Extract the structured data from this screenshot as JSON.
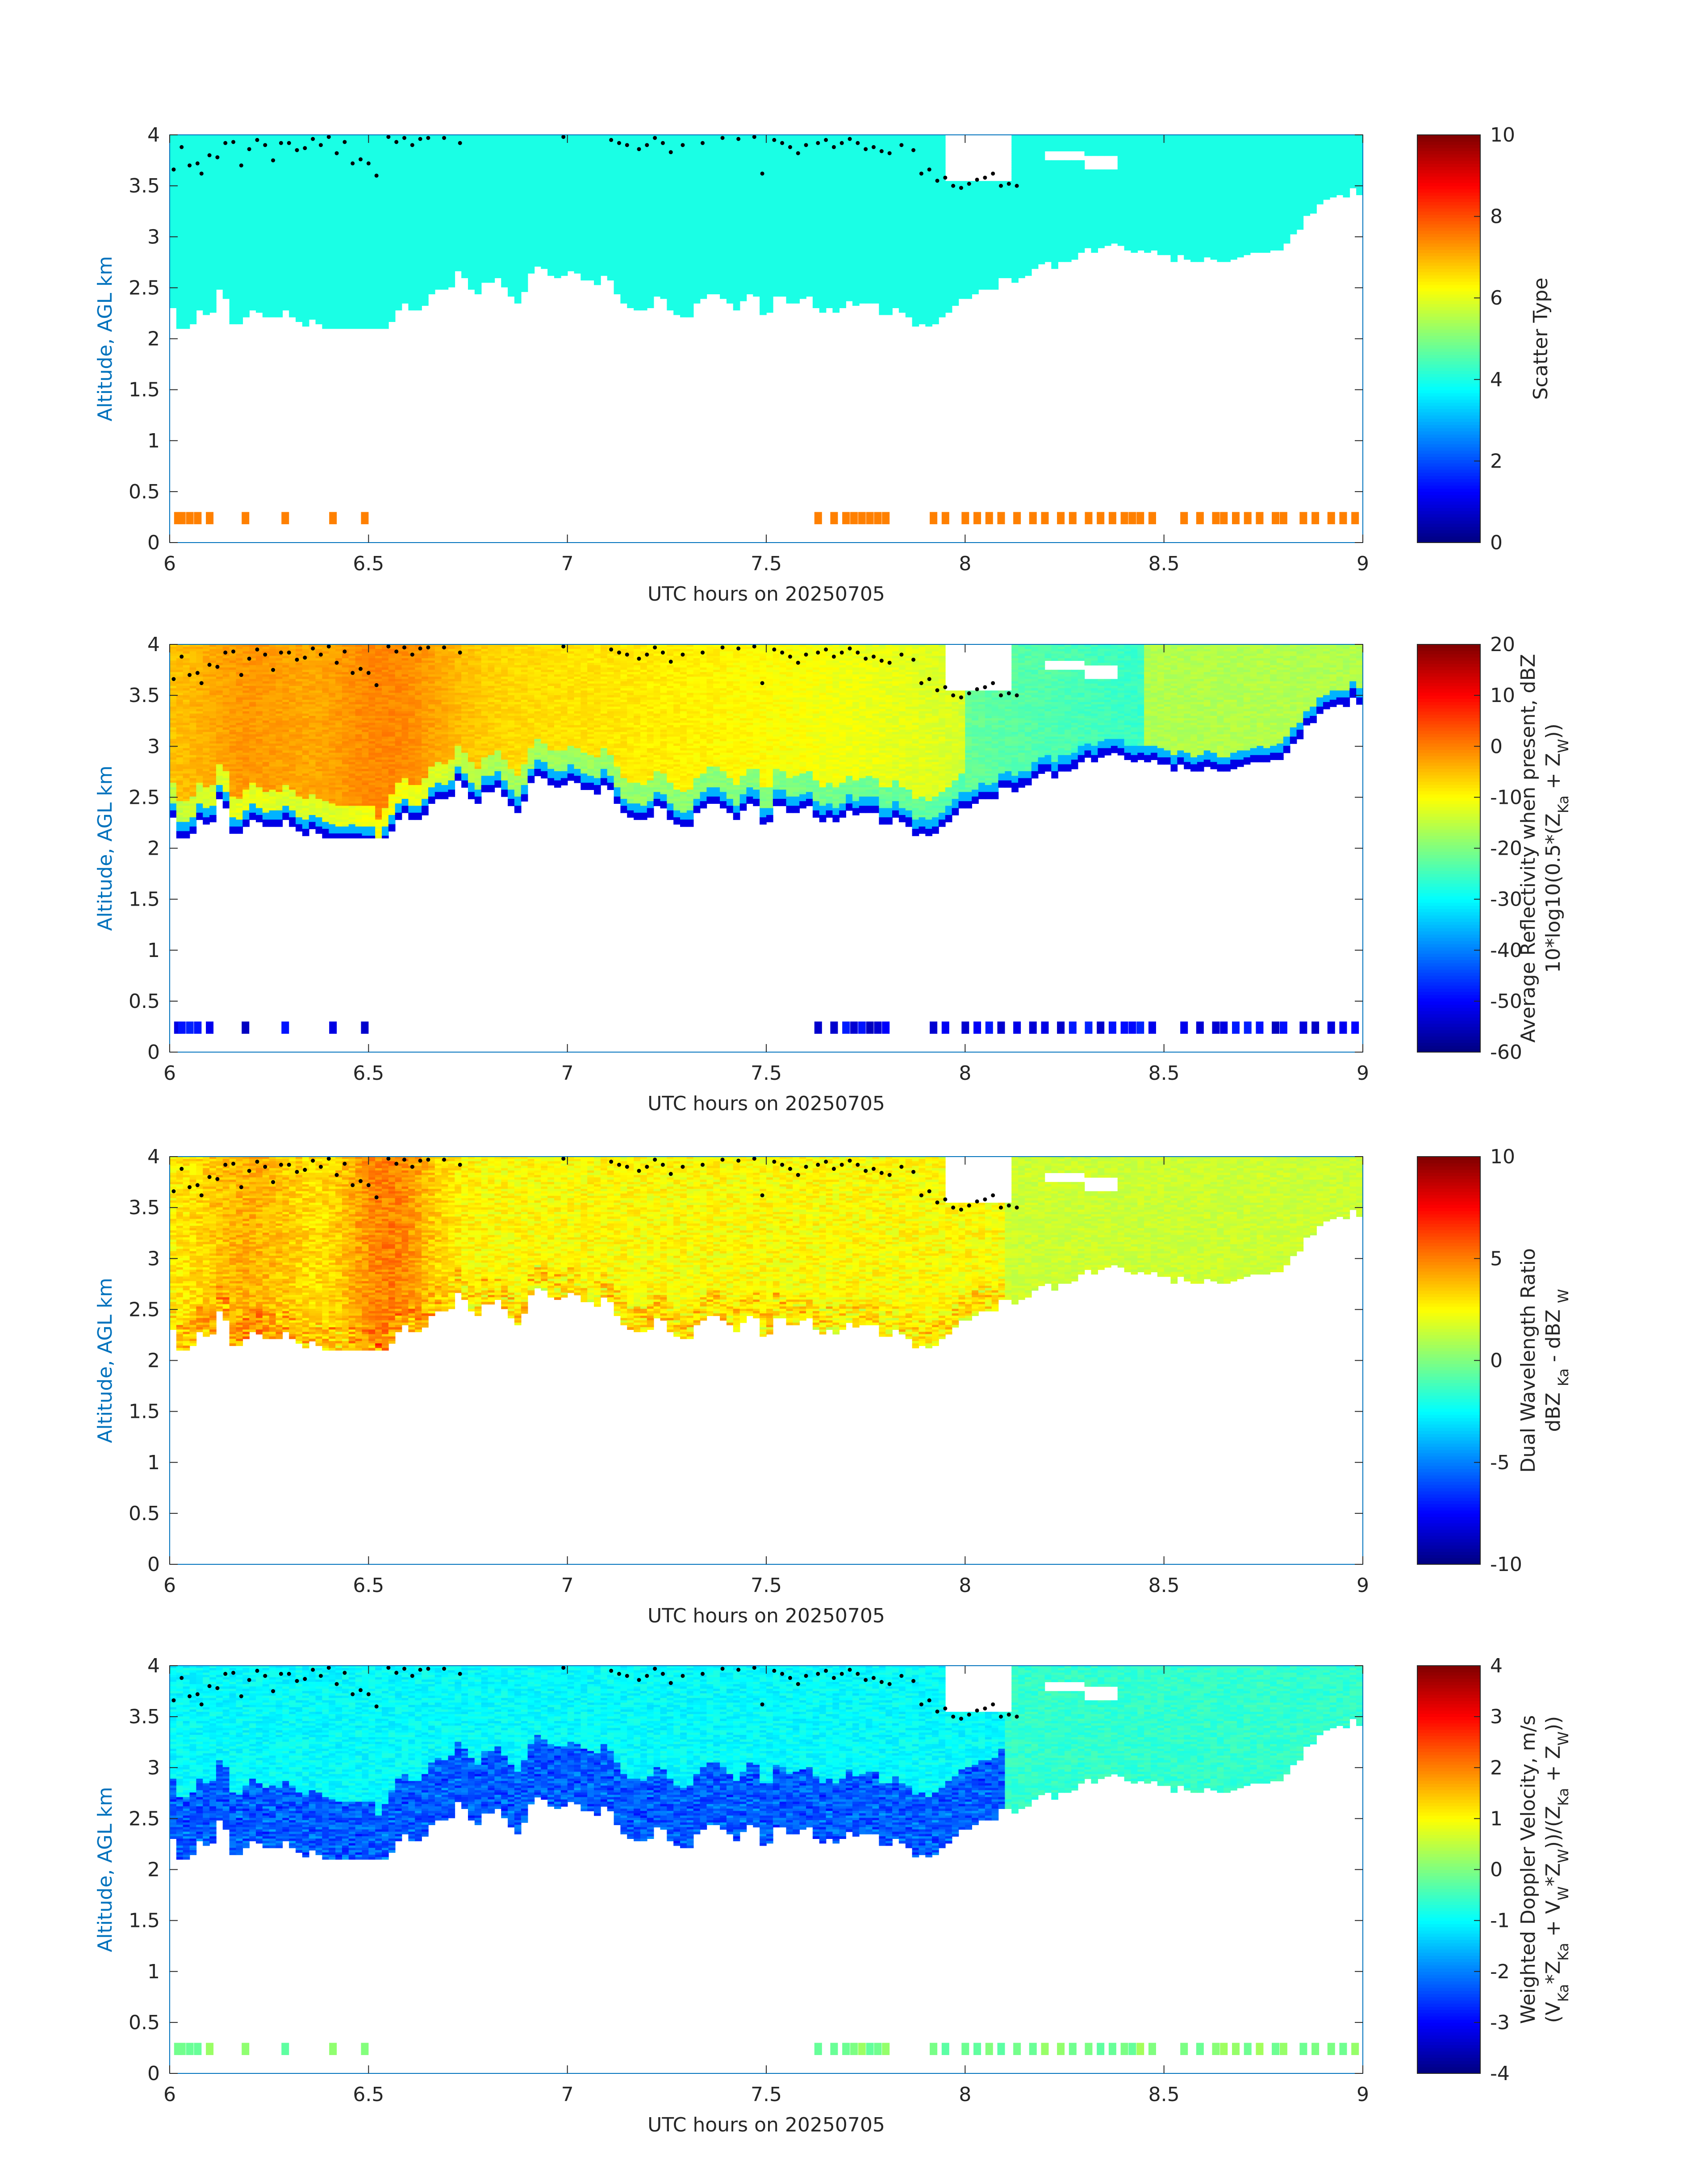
{
  "figure_title": "",
  "chart_data": [
    {
      "type": "heatmap",
      "id": "scatter-type",
      "xlabel": "UTC hours on 20250705",
      "ylabel": "Altitude, AGL km",
      "xlim": [
        6,
        9
      ],
      "ylim": [
        0,
        4
      ],
      "xticks": [
        "6",
        "6.5",
        "7",
        "7.5",
        "8",
        "8.5",
        "9"
      ],
      "yticks": [
        "0",
        "0.5",
        "1",
        "1.5",
        "2",
        "2.5",
        "3",
        "3.5",
        "4"
      ],
      "colorbar": {
        "label_lines": [
          "Scatter Type"
        ],
        "range": [
          0,
          10
        ],
        "ticks": [
          "0",
          "2",
          "4",
          "6",
          "8",
          "10"
        ]
      },
      "field": "scatter_type"
    },
    {
      "type": "heatmap",
      "id": "avg-reflectivity",
      "xlabel": "UTC hours on 20250705",
      "ylabel": "Altitude, AGL km",
      "xlim": [
        6,
        9
      ],
      "ylim": [
        0,
        4
      ],
      "xticks": [
        "6",
        "6.5",
        "7",
        "7.5",
        "8",
        "8.5",
        "9"
      ],
      "yticks": [
        "0",
        "0.5",
        "1",
        "1.5",
        "2",
        "2.5",
        "3",
        "3.5",
        "4"
      ],
      "colorbar": {
        "label_lines": [
          "Average Reflectivity when present, dBZ",
          "10*log10(0.5*(Zₖₐ + Zᴡ))"
        ],
        "label_rich": [
          [
            {
              "t": "Average Reflectivity when present, dBZ"
            }
          ],
          [
            {
              "t": "10*log10(0.5*(Z"
            },
            {
              "t": "Ka",
              "sub": true
            },
            {
              "t": " + Z"
            },
            {
              "t": "W",
              "sub": true
            },
            {
              "t": "))"
            }
          ]
        ],
        "range": [
          -60,
          20
        ],
        "ticks": [
          "-60",
          "-50",
          "-40",
          "-30",
          "-20",
          "-10",
          "0",
          "10",
          "20"
        ]
      },
      "field": "reflectivity"
    },
    {
      "type": "heatmap",
      "id": "dual-wavelength-ratio",
      "xlabel": "UTC hours on 20250705",
      "ylabel": "Altitude, AGL km",
      "xlim": [
        6,
        9
      ],
      "ylim": [
        0,
        4
      ],
      "xticks": [
        "6",
        "6.5",
        "7",
        "7.5",
        "8",
        "8.5",
        "9"
      ],
      "yticks": [
        "0",
        "0.5",
        "1",
        "1.5",
        "2",
        "2.5",
        "3",
        "3.5",
        "4"
      ],
      "colorbar": {
        "label_lines": [
          "Dual Wavelength Ratio",
          "dBZ Ka - dBZ W"
        ],
        "label_rich": [
          [
            {
              "t": "Dual Wavelength Ratio"
            }
          ],
          [
            {
              "t": "dBZ "
            },
            {
              "t": "Ka",
              "sub": true
            },
            {
              "t": " - dBZ "
            },
            {
              "t": "W",
              "sub": true
            }
          ]
        ],
        "range": [
          -10,
          10
        ],
        "ticks": [
          "-10",
          "-5",
          "0",
          "5",
          "10"
        ]
      },
      "field": "dwr"
    },
    {
      "type": "heatmap",
      "id": "weighted-doppler-velocity",
      "xlabel": "UTC hours on 20250705",
      "ylabel": "Altitude, AGL km",
      "xlim": [
        6,
        9
      ],
      "ylim": [
        0,
        4
      ],
      "xticks": [
        "6",
        "6.5",
        "7",
        "7.5",
        "8",
        "8.5",
        "9"
      ],
      "yticks": [
        "0",
        "0.5",
        "1",
        "1.5",
        "2",
        "2.5",
        "3",
        "3.5",
        "4"
      ],
      "colorbar": {
        "label_lines": [
          "Weighted Doppler Velocity, m/s",
          "(Vₖₐ*Zₖₐ + Vᴡ*Zᴡ))/(Zₖₐ + Zᴡ))"
        ],
        "label_rich": [
          [
            {
              "t": "Weighted Doppler Velocity, m/s"
            }
          ],
          [
            {
              "t": "(V"
            },
            {
              "t": "Ka",
              "sub": true
            },
            {
              "t": "*Z"
            },
            {
              "t": "Ka",
              "sub": true
            },
            {
              "t": " + V"
            },
            {
              "t": "W",
              "sub": true
            },
            {
              "t": "*Z"
            },
            {
              "t": "W",
              "sub": true
            },
            {
              "t": "))/(Z"
            },
            {
              "t": "Ka",
              "sub": true
            },
            {
              "t": " + Z"
            },
            {
              "t": "W",
              "sub": true
            },
            {
              "t": "))"
            }
          ]
        ],
        "range": [
          -4,
          4
        ],
        "ticks": [
          "-4",
          "-3",
          "-2",
          "-1",
          "0",
          "1",
          "2",
          "3",
          "4"
        ]
      },
      "field": "velocity"
    }
  ],
  "cloud_base_km": [
    [
      6.0,
      2.4
    ],
    [
      6.02,
      2.1
    ],
    [
      6.05,
      2.05
    ],
    [
      6.08,
      2.3
    ],
    [
      6.1,
      2.2
    ],
    [
      6.13,
      2.55
    ],
    [
      6.15,
      2.25
    ],
    [
      6.17,
      2.1
    ],
    [
      6.2,
      2.3
    ],
    [
      6.23,
      2.25
    ],
    [
      6.27,
      2.2
    ],
    [
      6.3,
      2.3
    ],
    [
      6.33,
      2.15
    ],
    [
      6.37,
      2.2
    ],
    [
      6.4,
      2.1
    ],
    [
      6.43,
      2.1
    ],
    [
      6.47,
      2.1
    ],
    [
      6.5,
      2.05
    ],
    [
      6.53,
      1.95
    ],
    [
      6.57,
      2.3
    ],
    [
      6.6,
      2.3
    ],
    [
      6.63,
      2.25
    ],
    [
      6.67,
      2.55
    ],
    [
      6.7,
      2.4
    ],
    [
      6.73,
      2.7
    ],
    [
      6.77,
      2.45
    ],
    [
      6.8,
      2.55
    ],
    [
      6.83,
      2.6
    ],
    [
      6.87,
      2.35
    ],
    [
      6.9,
      2.55
    ],
    [
      6.93,
      2.75
    ],
    [
      6.97,
      2.6
    ],
    [
      7.0,
      2.65
    ],
    [
      7.03,
      2.6
    ],
    [
      7.07,
      2.55
    ],
    [
      7.1,
      2.6
    ],
    [
      7.13,
      2.4
    ],
    [
      7.17,
      2.25
    ],
    [
      7.2,
      2.3
    ],
    [
      7.23,
      2.45
    ],
    [
      7.27,
      2.25
    ],
    [
      7.3,
      2.2
    ],
    [
      7.33,
      2.4
    ],
    [
      7.37,
      2.45
    ],
    [
      7.4,
      2.35
    ],
    [
      7.43,
      2.3
    ],
    [
      7.47,
      2.45
    ],
    [
      7.5,
      2.2
    ],
    [
      7.53,
      2.45
    ],
    [
      7.57,
      2.35
    ],
    [
      7.6,
      2.4
    ],
    [
      7.63,
      2.3
    ],
    [
      7.67,
      2.25
    ],
    [
      7.7,
      2.35
    ],
    [
      7.73,
      2.3
    ],
    [
      7.77,
      2.4
    ],
    [
      7.8,
      2.2
    ],
    [
      7.83,
      2.3
    ],
    [
      7.87,
      2.15
    ],
    [
      7.9,
      2.1
    ],
    [
      7.93,
      2.15
    ],
    [
      7.97,
      2.3
    ],
    [
      8.0,
      2.4
    ],
    [
      8.03,
      2.45
    ],
    [
      8.07,
      2.5
    ],
    [
      8.1,
      2.6
    ],
    [
      8.13,
      2.55
    ],
    [
      8.17,
      2.7
    ],
    [
      8.2,
      2.75
    ],
    [
      8.23,
      2.7
    ],
    [
      8.27,
      2.8
    ],
    [
      8.3,
      2.85
    ],
    [
      8.33,
      2.9
    ],
    [
      8.37,
      2.95
    ],
    [
      8.4,
      2.9
    ],
    [
      8.43,
      2.85
    ],
    [
      8.47,
      2.85
    ],
    [
      8.5,
      2.8
    ],
    [
      8.53,
      2.8
    ],
    [
      8.57,
      2.75
    ],
    [
      8.6,
      2.8
    ],
    [
      8.63,
      2.75
    ],
    [
      8.67,
      2.75
    ],
    [
      8.7,
      2.85
    ],
    [
      8.73,
      2.8
    ],
    [
      8.77,
      2.85
    ],
    [
      8.8,
      2.9
    ],
    [
      8.83,
      3.05
    ],
    [
      8.87,
      3.25
    ],
    [
      8.9,
      3.35
    ],
    [
      8.93,
      3.4
    ],
    [
      8.97,
      3.45
    ],
    [
      9.0,
      3.45
    ]
  ],
  "clear_gaps": [
    {
      "x0": 7.95,
      "x1": 8.12,
      "y0": 3.55,
      "y1": 4.0
    },
    {
      "x0": 8.2,
      "x1": 8.3,
      "y0": 3.75,
      "y1": 3.85
    },
    {
      "x0": 8.3,
      "x1": 8.38,
      "y0": 3.65,
      "y1": 3.8
    }
  ],
  "surface_echo_times_h": [
    6.02,
    6.03,
    6.05,
    6.07,
    6.1,
    6.19,
    6.29,
    6.41,
    6.49,
    7.63,
    7.67,
    7.7,
    7.72,
    7.74,
    7.76,
    7.78,
    7.8,
    7.92,
    7.95,
    8.0,
    8.03,
    8.06,
    8.09,
    8.13,
    8.17,
    8.2,
    8.24,
    8.27,
    8.31,
    8.34,
    8.37,
    8.4,
    8.42,
    8.44,
    8.47,
    8.55,
    8.59,
    8.63,
    8.65,
    8.68,
    8.71,
    8.74,
    8.78,
    8.8,
    8.85,
    8.88,
    8.92,
    8.95,
    8.98
  ],
  "surface_echo_alt_km": [
    0.18,
    0.3
  ],
  "cloud_top_dots": [
    [
      6.01,
      3.66
    ],
    [
      6.03,
      3.88
    ],
    [
      6.05,
      3.7
    ],
    [
      6.07,
      3.72
    ],
    [
      6.08,
      3.62
    ],
    [
      6.1,
      3.8
    ],
    [
      6.12,
      3.78
    ],
    [
      6.14,
      3.92
    ],
    [
      6.16,
      3.93
    ],
    [
      6.18,
      3.7
    ],
    [
      6.2,
      3.86
    ],
    [
      6.22,
      3.95
    ],
    [
      6.24,
      3.9
    ],
    [
      6.26,
      3.75
    ],
    [
      6.28,
      3.92
    ],
    [
      6.3,
      3.92
    ],
    [
      6.32,
      3.85
    ],
    [
      6.34,
      3.87
    ],
    [
      6.36,
      3.96
    ],
    [
      6.38,
      3.9
    ],
    [
      6.4,
      3.98
    ],
    [
      6.42,
      3.82
    ],
    [
      6.44,
      3.93
    ],
    [
      6.46,
      3.72
    ],
    [
      6.48,
      3.76
    ],
    [
      6.5,
      3.72
    ],
    [
      6.52,
      3.6
    ],
    [
      6.55,
      3.98
    ],
    [
      6.57,
      3.93
    ],
    [
      6.59,
      3.97
    ],
    [
      6.61,
      3.9
    ],
    [
      6.63,
      3.96
    ],
    [
      6.65,
      3.97
    ],
    [
      6.69,
      3.97
    ],
    [
      6.73,
      3.92
    ],
    [
      6.99,
      3.98
    ],
    [
      7.11,
      3.95
    ],
    [
      7.13,
      3.92
    ],
    [
      7.15,
      3.9
    ],
    [
      7.18,
      3.86
    ],
    [
      7.2,
      3.9
    ],
    [
      7.22,
      3.97
    ],
    [
      7.24,
      3.92
    ],
    [
      7.26,
      3.83
    ],
    [
      7.29,
      3.9
    ],
    [
      7.34,
      3.92
    ],
    [
      7.39,
      3.97
    ],
    [
      7.43,
      3.96
    ],
    [
      7.47,
      3.98
    ],
    [
      7.49,
      3.62
    ],
    [
      7.52,
      3.95
    ],
    [
      7.54,
      3.92
    ],
    [
      7.56,
      3.88
    ],
    [
      7.58,
      3.82
    ],
    [
      7.6,
      3.9
    ],
    [
      7.63,
      3.92
    ],
    [
      7.65,
      3.95
    ],
    [
      7.67,
      3.88
    ],
    [
      7.69,
      3.92
    ],
    [
      7.71,
      3.96
    ],
    [
      7.73,
      3.92
    ],
    [
      7.75,
      3.86
    ],
    [
      7.77,
      3.88
    ],
    [
      7.79,
      3.84
    ],
    [
      7.81,
      3.82
    ],
    [
      7.84,
      3.9
    ],
    [
      7.87,
      3.85
    ],
    [
      7.89,
      3.62
    ],
    [
      7.91,
      3.66
    ],
    [
      7.93,
      3.55
    ],
    [
      7.95,
      3.58
    ],
    [
      7.97,
      3.5
    ],
    [
      7.99,
      3.48
    ],
    [
      8.01,
      3.52
    ],
    [
      8.03,
      3.56
    ],
    [
      8.05,
      3.58
    ],
    [
      8.07,
      3.62
    ],
    [
      8.09,
      3.5
    ],
    [
      8.11,
      3.52
    ],
    [
      8.13,
      3.5
    ]
  ]
}
